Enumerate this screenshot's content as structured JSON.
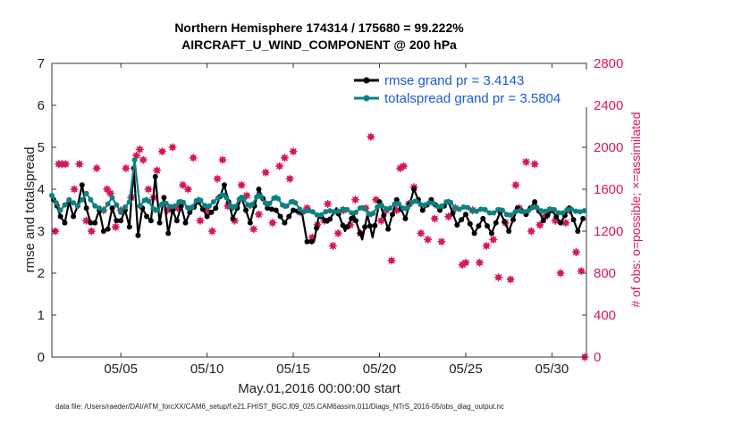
{
  "chart_data": {
    "type": "line",
    "title_line1": "Northern Hemisphere 174314 / 175680 = 99.222%",
    "title_line2": "AIRCRAFT_U_WIND_COMPONENT @ 200 hPa",
    "xlabel": "May.01,2016 00:00:00 start",
    "ylabel": "rmse and totalspread",
    "ylabel_right": "# of obs: o=possible; ×=assimilated",
    "footer": "data file: /Users/raeder/DAI/ATM_forcXX/CAM6_setup/f.e21.FHIST_BGC.f09_025.CAM6assim.011/Diags_NTrS_2016-05/obs_diag_output.nc",
    "xlim": [
      1,
      32
    ],
    "ylim": [
      0,
      7
    ],
    "y2lim": [
      0,
      2800
    ],
    "x_ticks": [
      {
        "value": 5,
        "label": "05/05"
      },
      {
        "value": 10,
        "label": "05/10"
      },
      {
        "value": 15,
        "label": "05/15"
      },
      {
        "value": 20,
        "label": "05/20"
      },
      {
        "value": 25,
        "label": "05/25"
      },
      {
        "value": 30,
        "label": "05/30"
      }
    ],
    "y_ticks": [
      "0",
      "1",
      "2",
      "3",
      "4",
      "5",
      "6",
      "7"
    ],
    "y2_ticks": [
      "0",
      "400",
      "800",
      "1200",
      "1600",
      "2000",
      "2400",
      "2800"
    ],
    "series": [
      {
        "name": "rmse grand pr = 3.4143",
        "color": "#000000",
        "anchors": [
          [
            1.1,
            3.75
          ],
          [
            1.3,
            3.6
          ],
          [
            1.5,
            3.35
          ],
          [
            1.75,
            3.2
          ],
          [
            2.0,
            3.7
          ],
          [
            2.25,
            3.35
          ],
          [
            2.5,
            3.6
          ],
          [
            2.75,
            4.1
          ],
          [
            3.0,
            3.55
          ],
          [
            3.25,
            3.2
          ],
          [
            3.5,
            3.2
          ],
          [
            3.75,
            3.5
          ],
          [
            4.0,
            3.0
          ],
          [
            4.25,
            3.05
          ],
          [
            4.5,
            3.55
          ],
          [
            4.75,
            3.25
          ],
          [
            5.0,
            3.25
          ],
          [
            5.25,
            3.5
          ],
          [
            5.5,
            3.1
          ],
          [
            5.75,
            4.5
          ],
          [
            6.0,
            2.9
          ],
          [
            6.25,
            3.55
          ],
          [
            6.5,
            3.35
          ],
          [
            6.75,
            3.25
          ],
          [
            7.0,
            4.3
          ],
          [
            7.25,
            3.2
          ],
          [
            7.5,
            3.8
          ],
          [
            7.75,
            2.95
          ],
          [
            8.0,
            3.5
          ],
          [
            8.25,
            3.25
          ],
          [
            8.5,
            3.6
          ],
          [
            8.75,
            3.2
          ],
          [
            9.0,
            3.45
          ],
          [
            9.5,
            3.7
          ],
          [
            10.0,
            3.35
          ],
          [
            10.5,
            3.55
          ],
          [
            11.0,
            4.1
          ],
          [
            11.5,
            3.3
          ],
          [
            12.0,
            3.8
          ],
          [
            12.5,
            3.2
          ],
          [
            13.0,
            4.0
          ],
          [
            13.5,
            3.55
          ],
          [
            14.0,
            3.5
          ],
          [
            14.5,
            3.2
          ],
          [
            15.0,
            3.5
          ],
          [
            15.5,
            3.45
          ],
          [
            15.8,
            2.75
          ],
          [
            16.2,
            2.75
          ],
          [
            16.5,
            3.4
          ],
          [
            17.0,
            3.2
          ],
          [
            17.5,
            3.55
          ],
          [
            18.0,
            3.0
          ],
          [
            18.5,
            3.4
          ],
          [
            19.0,
            2.8
          ],
          [
            19.3,
            3.4
          ],
          [
            19.6,
            2.85
          ],
          [
            20.0,
            3.7
          ],
          [
            20.5,
            3.05
          ],
          [
            21.0,
            3.75
          ],
          [
            21.5,
            3.3
          ],
          [
            22.0,
            4.0
          ],
          [
            22.5,
            3.5
          ],
          [
            23.0,
            3.75
          ],
          [
            23.5,
            3.5
          ],
          [
            24.0,
            3.7
          ],
          [
            24.5,
            3.15
          ],
          [
            25.0,
            3.4
          ],
          [
            25.5,
            2.95
          ],
          [
            26.0,
            3.3
          ],
          [
            26.5,
            2.95
          ],
          [
            27.0,
            3.45
          ],
          [
            27.5,
            3.0
          ],
          [
            28.0,
            3.55
          ],
          [
            28.5,
            3.4
          ],
          [
            29.0,
            3.7
          ],
          [
            29.5,
            3.25
          ],
          [
            30.0,
            3.5
          ],
          [
            30.5,
            3.2
          ],
          [
            31.0,
            3.55
          ],
          [
            31.5,
            3.0
          ],
          [
            31.8,
            3.3
          ]
        ]
      },
      {
        "name": "totalspread grand pr = 3.5804",
        "color": "#0f8080",
        "anchors": [
          [
            1.0,
            3.85
          ],
          [
            1.5,
            3.5
          ],
          [
            2.0,
            3.75
          ],
          [
            2.5,
            3.6
          ],
          [
            3.0,
            3.9
          ],
          [
            3.5,
            3.6
          ],
          [
            4.0,
            3.5
          ],
          [
            4.5,
            3.8
          ],
          [
            5.0,
            3.45
          ],
          [
            5.5,
            3.7
          ],
          [
            5.8,
            4.7
          ],
          [
            6.1,
            3.6
          ],
          [
            6.5,
            3.8
          ],
          [
            7.0,
            3.45
          ],
          [
            7.5,
            3.7
          ],
          [
            8.0,
            3.55
          ],
          [
            8.5,
            3.75
          ],
          [
            9.0,
            3.5
          ],
          [
            9.5,
            3.8
          ],
          [
            10.0,
            3.55
          ],
          [
            10.5,
            3.75
          ],
          [
            11.0,
            3.9
          ],
          [
            11.5,
            3.5
          ],
          [
            12.0,
            3.85
          ],
          [
            12.5,
            3.55
          ],
          [
            13.0,
            3.9
          ],
          [
            13.5,
            3.6
          ],
          [
            14.0,
            3.85
          ],
          [
            14.5,
            3.55
          ],
          [
            15.0,
            3.75
          ],
          [
            15.5,
            3.45
          ],
          [
            16.0,
            3.5
          ],
          [
            16.5,
            3.35
          ],
          [
            17.0,
            3.5
          ],
          [
            17.5,
            3.45
          ],
          [
            18.0,
            3.55
          ],
          [
            18.5,
            3.4
          ],
          [
            19.0,
            3.6
          ],
          [
            19.5,
            3.35
          ],
          [
            20.0,
            3.65
          ],
          [
            20.5,
            3.5
          ],
          [
            21.0,
            3.7
          ],
          [
            21.5,
            3.5
          ],
          [
            22.0,
            3.75
          ],
          [
            22.5,
            3.6
          ],
          [
            23.0,
            3.7
          ],
          [
            23.5,
            3.55
          ],
          [
            24.0,
            3.75
          ],
          [
            24.5,
            3.5
          ],
          [
            25.0,
            3.6
          ],
          [
            25.5,
            3.45
          ],
          [
            26.0,
            3.55
          ],
          [
            26.5,
            3.4
          ],
          [
            27.0,
            3.55
          ],
          [
            27.5,
            3.35
          ],
          [
            28.0,
            3.5
          ],
          [
            28.5,
            3.45
          ],
          [
            29.0,
            3.6
          ],
          [
            29.5,
            3.45
          ],
          [
            30.0,
            3.55
          ],
          [
            30.5,
            3.4
          ],
          [
            31.0,
            3.55
          ],
          [
            31.5,
            3.45
          ],
          [
            32.0,
            3.5
          ]
        ]
      }
    ],
    "obs_points": [
      [
        1.2,
        1200
      ],
      [
        1.4,
        1840
      ],
      [
        1.6,
        1840
      ],
      [
        1.8,
        1840
      ],
      [
        2.3,
        1600
      ],
      [
        2.6,
        1840
      ],
      [
        3.0,
        1300
      ],
      [
        3.3,
        1200
      ],
      [
        3.6,
        1800
      ],
      [
        4.0,
        1400
      ],
      [
        4.2,
        1600
      ],
      [
        4.4,
        1560
      ],
      [
        4.7,
        1240
      ],
      [
        5.0,
        1400
      ],
      [
        5.3,
        1800
      ],
      [
        5.6,
        1520
      ],
      [
        5.9,
        1920
      ],
      [
        6.1,
        1980
      ],
      [
        6.3,
        1880
      ],
      [
        6.6,
        1600
      ],
      [
        6.9,
        1520
      ],
      [
        7.1,
        1780
      ],
      [
        7.4,
        1960
      ],
      [
        7.7,
        1400
      ],
      [
        8.0,
        2000
      ],
      [
        8.3,
        1420
      ],
      [
        8.6,
        1640
      ],
      [
        8.9,
        1600
      ],
      [
        9.2,
        1900
      ],
      [
        9.6,
        1300
      ],
      [
        10.0,
        1400
      ],
      [
        10.3,
        1200
      ],
      [
        10.6,
        1700
      ],
      [
        10.9,
        1880
      ],
      [
        11.2,
        1440
      ],
      [
        11.6,
        1300
      ],
      [
        12.0,
        1640
      ],
      [
        12.3,
        1540
      ],
      [
        12.7,
        1220
      ],
      [
        13.0,
        1360
      ],
      [
        13.4,
        1760
      ],
      [
        13.8,
        1280
      ],
      [
        14.2,
        1820
      ],
      [
        14.5,
        1900
      ],
      [
        14.8,
        1700
      ],
      [
        15.0,
        1960
      ],
      [
        15.4,
        1380
      ],
      [
        15.8,
        1420
      ],
      [
        16.1,
        1140
      ],
      [
        16.4,
        1260
      ],
      [
        16.8,
        1300
      ],
      [
        17.0,
        1460
      ],
      [
        17.3,
        1060
      ],
      [
        17.6,
        1180
      ],
      [
        17.9,
        1400
      ],
      [
        18.3,
        1260
      ],
      [
        18.6,
        1500
      ],
      [
        18.9,
        1180
      ],
      [
        19.2,
        1420
      ],
      [
        19.5,
        2100
      ],
      [
        19.8,
        1500
      ],
      [
        20.1,
        1300
      ],
      [
        20.4,
        1400
      ],
      [
        20.7,
        920
      ],
      [
        21.0,
        1400
      ],
      [
        21.2,
        1800
      ],
      [
        21.4,
        1820
      ],
      [
        21.7,
        1460
      ],
      [
        22.0,
        1620
      ],
      [
        22.4,
        1180
      ],
      [
        22.8,
        1120
      ],
      [
        23.2,
        1320
      ],
      [
        23.6,
        1100
      ],
      [
        24.0,
        1340
      ],
      [
        24.4,
        1420
      ],
      [
        24.8,
        880
      ],
      [
        25.0,
        900
      ],
      [
        25.4,
        1400
      ],
      [
        25.8,
        900
      ],
      [
        26.2,
        1060
      ],
      [
        26.6,
        1120
      ],
      [
        26.9,
        760
      ],
      [
        27.3,
        1280
      ],
      [
        27.6,
        740
      ],
      [
        27.9,
        1640
      ],
      [
        28.1,
        1420
      ],
      [
        28.5,
        1860
      ],
      [
        28.8,
        1200
      ],
      [
        29.0,
        1840
      ],
      [
        29.3,
        1260
      ],
      [
        29.6,
        1340
      ],
      [
        29.9,
        1400
      ],
      [
        30.2,
        1300
      ],
      [
        30.5,
        800
      ],
      [
        30.8,
        1280
      ],
      [
        31.0,
        1400
      ],
      [
        31.4,
        1000
      ],
      [
        31.7,
        820
      ],
      [
        31.9,
        0
      ]
    ]
  }
}
